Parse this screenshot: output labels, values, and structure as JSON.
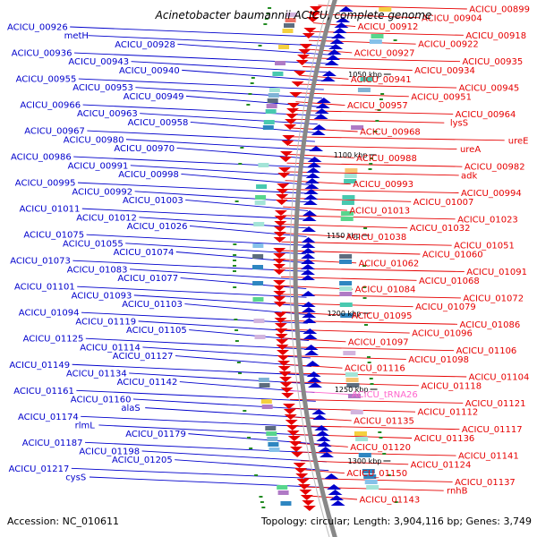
{
  "title": "Acinetobacter baumannii ACICU, complete genome",
  "accession": "Accession: NC_010611",
  "topology": "Topology: circular; Length: 3,904,116 bp; Genes: 3,749",
  "colors": {
    "plus_strand": "#0000cc",
    "minus_strand": "#e60000",
    "rna": "#ff66cc",
    "backbone": "#888888",
    "tick": "#228b22"
  },
  "ticks": [
    "1050 kbp",
    "1100 kbp",
    "1150 kbp",
    "1200 kbp",
    "1250 kbp",
    "1300 kbp"
  ],
  "left_labels": [
    "ACICU_00926",
    "metH",
    "ACICU_00928",
    "ACICU_00936",
    "ACICU_00943",
    "ACICU_00940",
    "ACICU_00955",
    "ACICU_00953",
    "ACICU_00949",
    "ACICU_00966",
    "ACICU_00963",
    "ACICU_00958",
    "ACICU_00967",
    "ACICU_00980",
    "ACICU_00970",
    "ACICU_00986",
    "ACICU_00991",
    "ACICU_00998",
    "ACICU_00995",
    "ACICU_00992",
    "ACICU_01003",
    "ACICU_01011",
    "ACICU_01012",
    "ACICU_01026",
    "ACICU_01075",
    "ACICU_01055",
    "ACICU_01074",
    "ACICU_01073",
    "ACICU_01083",
    "ACICU_01077",
    "ACICU_01101",
    "ACICU_01093",
    "ACICU_01103",
    "ACICU_01094",
    "ACICU_01119",
    "ACICU_01105",
    "ACICU_01125",
    "ACICU_01114",
    "ACICU_01127",
    "ACICU_01149",
    "ACICU_01134",
    "ACICU_01142",
    "ACICU_01161",
    "ACICU_01160",
    "alaS",
    "ACICU_01174",
    "rlmL",
    "ACICU_01179",
    "ACICU_01187",
    "ACICU_01198",
    "ACICU_01205",
    "ACICU_01217",
    "cysS"
  ],
  "right_labels": [
    "ACICU_00899",
    "ACICU_00904",
    "ACICU_00912",
    "ACICU_00918",
    "ACICU_00922",
    "ACICU_00927",
    "ACICU_00935",
    "ACICU_00934",
    "ACICU_00941",
    "ACICU_00945",
    "ACICU_00951",
    "ACICU_00957",
    "ACICU_00964",
    "lysS",
    "ACICU_00968",
    "ureE",
    "ureA",
    "ACICU_00988",
    "ACICU_00982",
    "adk",
    "ACICU_00993",
    "ACICU_00994",
    "ACICU_01007",
    "ACICU_01013",
    "ACICU_01023",
    "ACICU_01032",
    "ACICU_01038",
    "ACICU_01051",
    "ACICU_01060",
    "ACICU_01062",
    "ACICU_01091",
    "ACICU_01068",
    "ACICU_01084",
    "ACICU_01072",
    "ACICU_01079",
    "ACICU_01095",
    "ACICU_01086",
    "ACICU_01096",
    "ACICU_01097",
    "ACICU_01106",
    "ACICU_01098",
    "ACICU_01116",
    "ACICU_01104",
    "ACICU_01118",
    "ACICU_tRNA26",
    "ACICU_01121",
    "ACICU_01112",
    "ACICU_01135",
    "ACICU_01117",
    "ACICU_01136",
    "ACICU_01120",
    "ACICU_01141",
    "ACICU_01124",
    "ACICU_01150",
    "ACICU_01137",
    "rnhB",
    "ACICU_01143"
  ],
  "rna_labels": [
    "ACICU_tRNA26"
  ]
}
